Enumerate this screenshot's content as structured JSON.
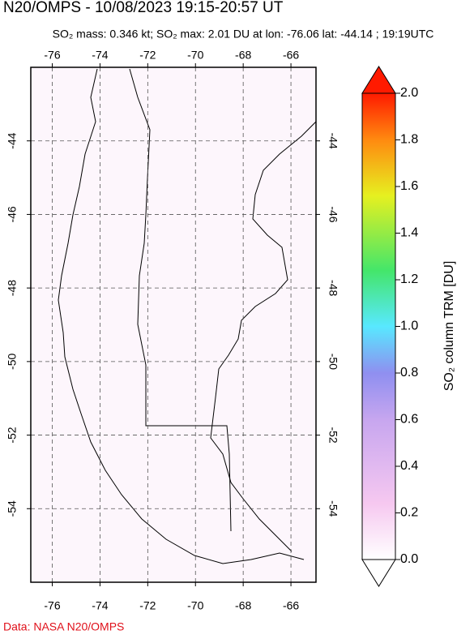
{
  "header": {
    "title": "N20/OMPS - 10/08/2023 19:15-20:57 UT",
    "subtitle": "SO₂ mass: 0.346 kt; SO₂ max: 2.01 DU at lon: -76.06 lat: -44.14 ; 19:19UTC"
  },
  "map": {
    "xlim": [
      -76.9,
      -64.95
    ],
    "ylim": [
      -42.0,
      -56.0
    ],
    "xticks": [
      -76,
      -74,
      -72,
      -70,
      -68,
      -66
    ],
    "yticks": [
      -44,
      -46,
      -48,
      -50,
      -52,
      -54
    ],
    "grid": true
  },
  "colorbar": {
    "label": "SO₂ column TRM [DU]",
    "lim": [
      0,
      2.0
    ],
    "ticks": [
      {
        "value": 0,
        "label": "0.0"
      },
      0.2,
      0.4,
      0.6,
      0.8,
      {
        "value": 1,
        "label": "1.0"
      },
      1.2,
      1.4,
      1.6,
      1.8,
      {
        "value": 2,
        "label": "2.0"
      }
    ]
  },
  "footer": {
    "credit": "Data: NASA N20/OMPS"
  }
}
